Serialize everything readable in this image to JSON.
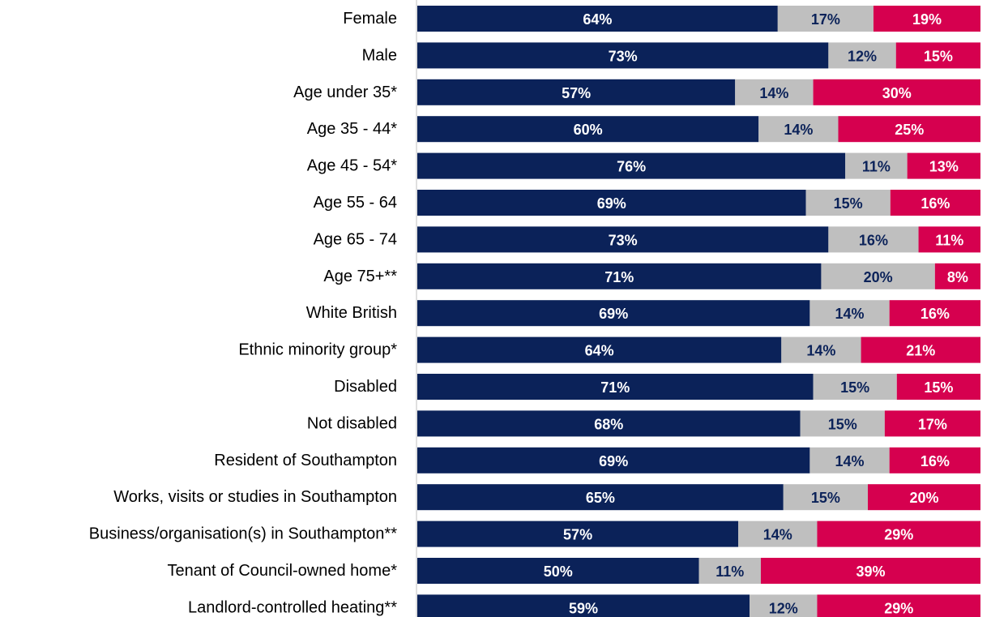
{
  "colors": {
    "agree": "#0b2259",
    "neutral": "#bfbfbf",
    "disagree": "#d6004f",
    "agree_text": "#ffffff",
    "neutral_text": "#0b2259",
    "disagree_text": "#ffffff",
    "axis": "#bfbfbf"
  },
  "chart_data": {
    "type": "bar",
    "orientation": "horizontal",
    "stacked": "100%",
    "categories": [
      "Female",
      "Male",
      "Age under 35*",
      "Age 35 - 44*",
      "Age 45 - 54*",
      "Age 55 - 64",
      "Age 65 - 74",
      "Age 75+**",
      "White British",
      "Ethnic minority group*",
      "Disabled",
      "Not disabled",
      "Resident of Southampton",
      "Works, visits or studies in Southampton",
      "Business/organisation(s) in Southampton**",
      "Tenant of Council-owned home*",
      "Landlord-controlled heating**"
    ],
    "series": [
      {
        "values": [
          64,
          73,
          57,
          60,
          76,
          69,
          73,
          71,
          69,
          64,
          71,
          68,
          69,
          65,
          57,
          50,
          59
        ]
      },
      {
        "values": [
          17,
          12,
          14,
          14,
          11,
          15,
          16,
          20,
          14,
          14,
          15,
          15,
          14,
          15,
          14,
          11,
          12
        ]
      },
      {
        "values": [
          19,
          15,
          30,
          25,
          13,
          16,
          11,
          8,
          16,
          21,
          15,
          17,
          16,
          20,
          29,
          39,
          29
        ]
      }
    ],
    "value_format": "percent",
    "data_labels": true,
    "legend": "none",
    "grid": false
  }
}
